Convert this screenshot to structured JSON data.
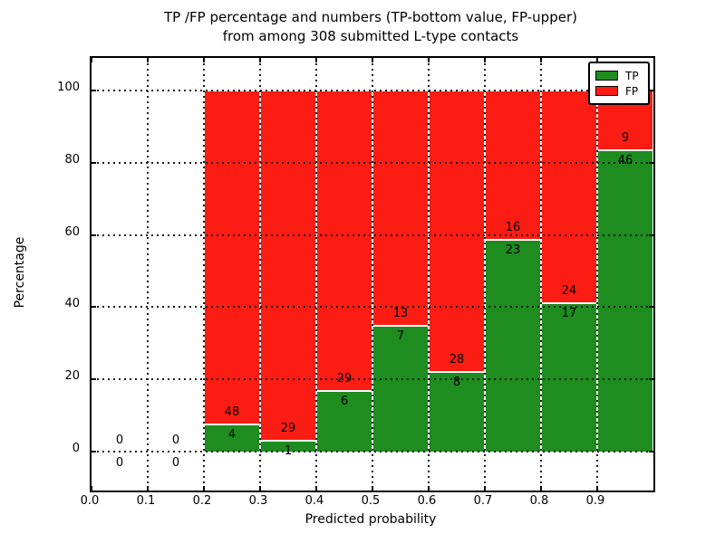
{
  "title": {
    "line1": "TP /FP percentage and numbers (TP-bottom value, FP-upper)",
    "line2": "from among 308 submitted L-type contacts"
  },
  "axes": {
    "xlabel": "Predicted probability",
    "ylabel": "Percentage"
  },
  "legend": {
    "entries": [
      {
        "label": "TP",
        "color": "#1e8c1e"
      },
      {
        "label": "FP",
        "color": "#fb1d13"
      }
    ]
  },
  "chart_data": {
    "type": "bar",
    "stacked": true,
    "normalized": "each bin stacked to 100%",
    "title": "TP /FP percentage and numbers (TP-bottom value, FP-upper) from among 308 submitted L-type contacts",
    "xlabel": "Predicted probability",
    "ylabel": "Percentage",
    "total_contacts": 308,
    "bin_width": 0.1,
    "bin_starts": [
      0.0,
      0.1,
      0.2,
      0.3,
      0.4,
      0.5,
      0.6,
      0.7,
      0.8,
      0.9
    ],
    "series": [
      {
        "name": "TP",
        "color": "#1e8c1e",
        "counts": [
          0,
          0,
          4,
          1,
          6,
          7,
          8,
          23,
          17,
          46
        ]
      },
      {
        "name": "FP",
        "color": "#fb1d13",
        "counts": [
          0,
          0,
          48,
          29,
          29,
          13,
          28,
          16,
          24,
          9
        ]
      }
    ],
    "tp_percent_by_bin": [
      null,
      null,
      7.7,
      3.3,
      17.1,
      35.0,
      22.2,
      59.0,
      41.5,
      83.6
    ],
    "xticks": [
      "0.0",
      "0.1",
      "0.2",
      "0.3",
      "0.4",
      "0.5",
      "0.6",
      "0.7",
      "0.8",
      "0.9"
    ],
    "yticks": [
      "0",
      "20",
      "40",
      "60",
      "80",
      "100"
    ],
    "xlim": [
      0.0,
      1.0
    ],
    "ylim": [
      -10.8,
      109.0
    ],
    "grid": "dotted",
    "legend_position": "upper right"
  }
}
